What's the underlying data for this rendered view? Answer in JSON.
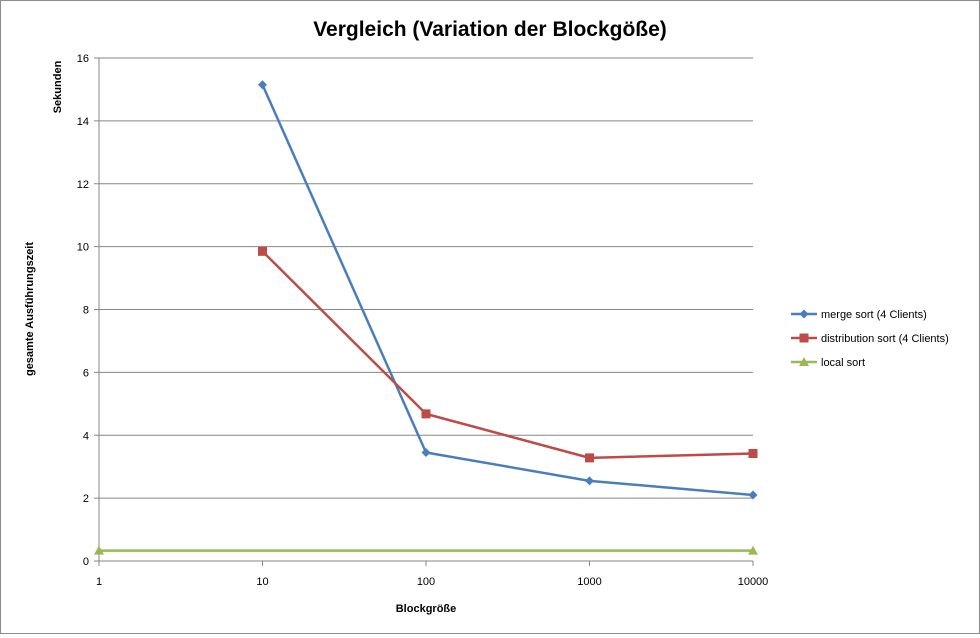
{
  "chart_data": {
    "type": "line",
    "title": "Vergleich (Variation der Blockgöße)",
    "xlabel": "Blockgröße",
    "ylabel": "gesamte Ausführungszeit",
    "y_unit_label": "Sekunden",
    "x_scale": "log",
    "x": [
      1,
      10,
      100,
      1000,
      10000
    ],
    "x_tick_labels": [
      "1",
      "10",
      "100",
      "1000",
      "10000"
    ],
    "ylim": [
      0,
      16
    ],
    "y_ticks": [
      0,
      2,
      4,
      6,
      8,
      10,
      12,
      14,
      16
    ],
    "grid": "horizontal",
    "legend_position": "right",
    "series": [
      {
        "name": "merge sort (4 Clients)",
        "color": "#4a7ebb",
        "marker": "diamond",
        "points": [
          [
            10,
            15.15
          ],
          [
            100,
            3.45
          ],
          [
            1000,
            2.55
          ],
          [
            10000,
            2.1
          ]
        ]
      },
      {
        "name": "distribution sort (4 Clients)",
        "color": "#be4b48",
        "marker": "square",
        "points": [
          [
            10,
            9.85
          ],
          [
            100,
            4.68
          ],
          [
            1000,
            3.28
          ],
          [
            10000,
            3.42
          ]
        ]
      },
      {
        "name": "local sort",
        "color": "#98b954",
        "marker": "triangle",
        "points": [
          [
            1,
            0.33
          ],
          [
            10000,
            0.33
          ]
        ]
      }
    ]
  }
}
